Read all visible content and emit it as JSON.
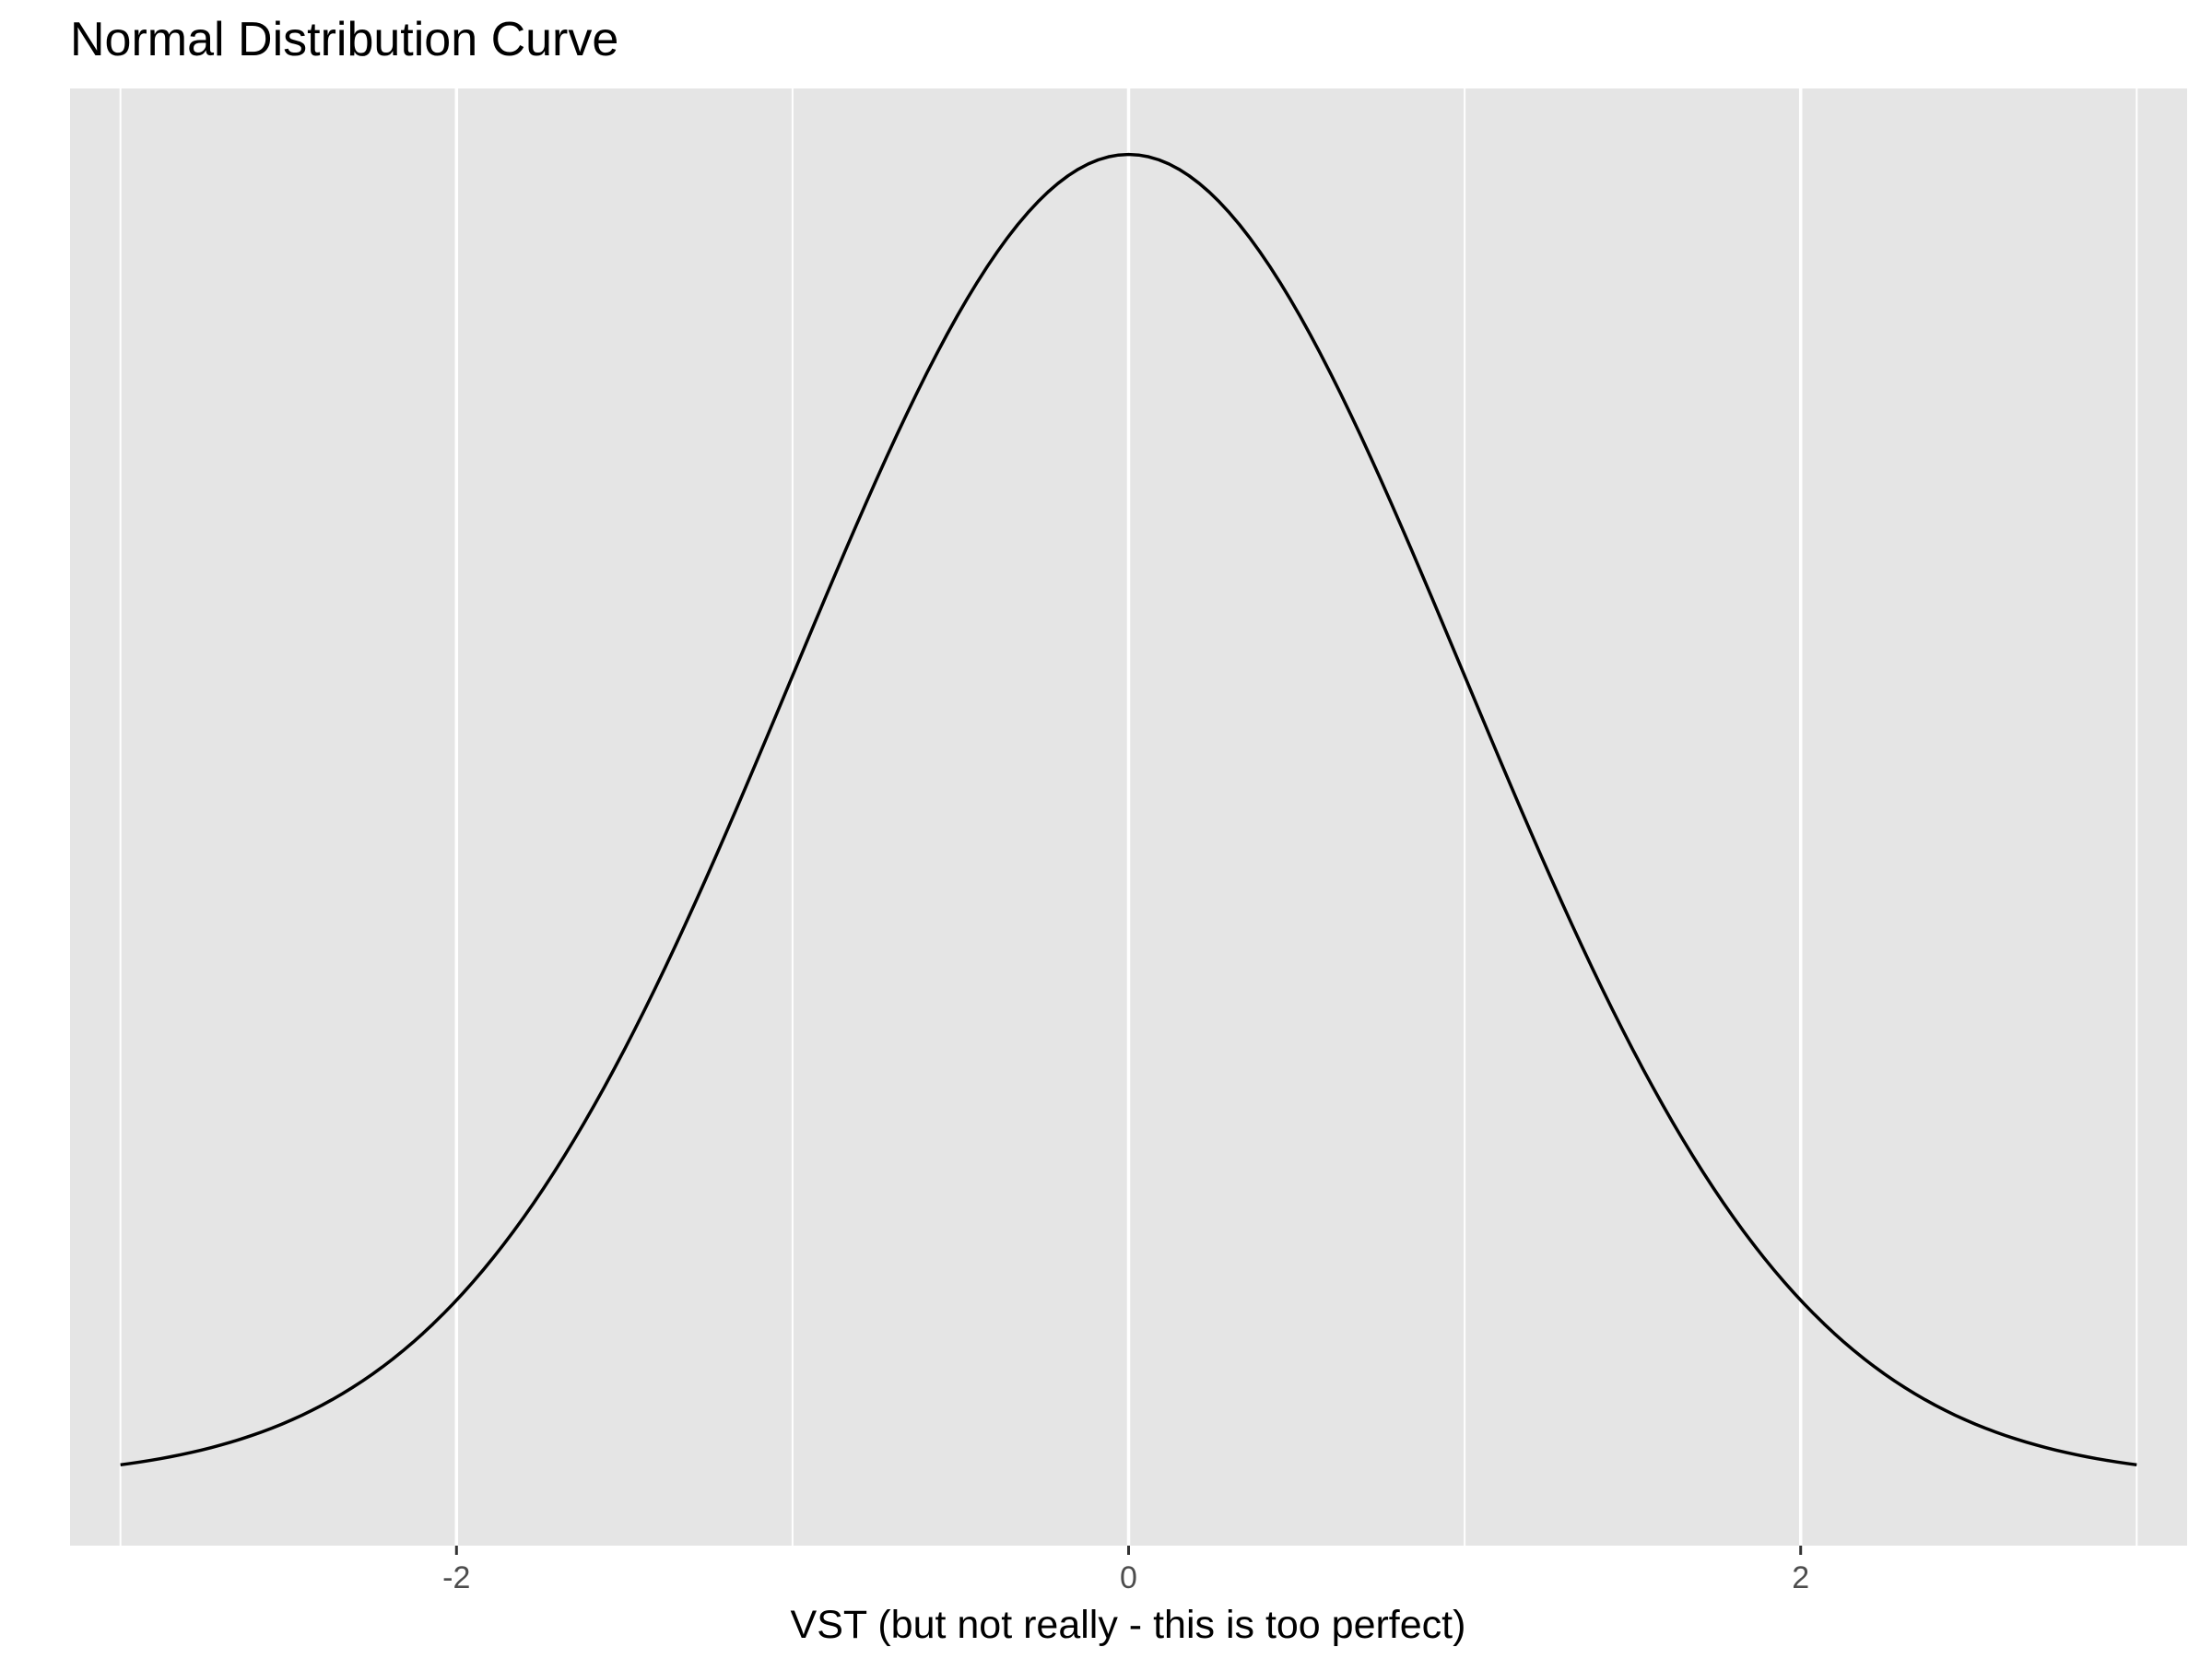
{
  "chart_data": {
    "type": "line",
    "title": "Normal Distribution Curve",
    "xlabel": "VST  (but not really - this is too perfect)",
    "ylabel": "",
    "xlim": [
      -3.15,
      3.15
    ],
    "ylim": [
      -0.0199,
      0.4188
    ],
    "x_ticks": [
      -2,
      0,
      2
    ],
    "x_tick_labels": [
      "-2",
      "0",
      "2"
    ],
    "x_minor_gridlines": [
      -3,
      -1,
      1,
      3
    ],
    "y_axis_shown": false,
    "grid": true,
    "legend": "none",
    "series": [
      {
        "function": "standard normal density",
        "mean": 0,
        "sd": 1,
        "x_range": [
          -3,
          3
        ],
        "samples": 201
      }
    ],
    "colors": {
      "panel_background": "#e5e5e5",
      "gridline": "#ffffff",
      "line": "#000000",
      "tick_label": "#4d4d4d",
      "tick_mark": "#333333"
    }
  }
}
